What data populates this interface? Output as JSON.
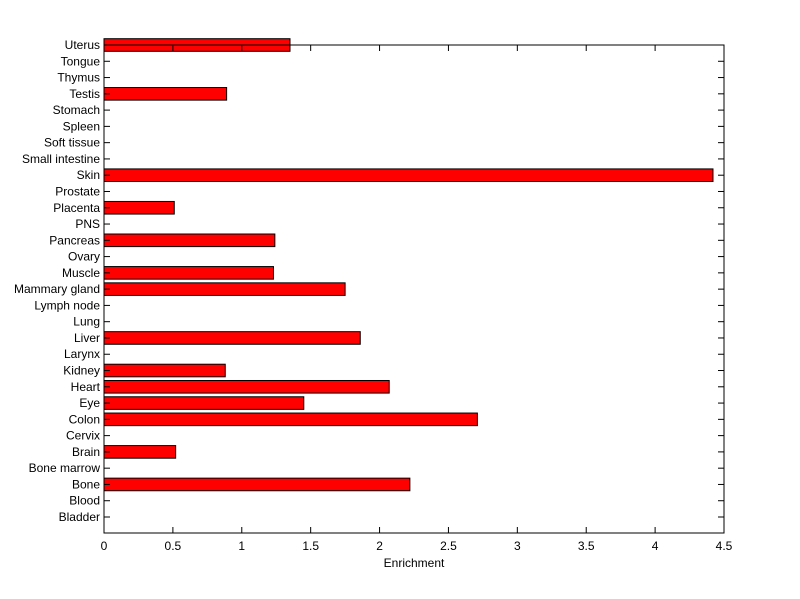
{
  "chart_data": {
    "type": "bar",
    "orientation": "horizontal",
    "categories": [
      "Bladder",
      "Blood",
      "Bone",
      "Bone marrow",
      "Brain",
      "Cervix",
      "Colon",
      "Eye",
      "Heart",
      "Kidney",
      "Larynx",
      "Liver",
      "Lung",
      "Lymph node",
      "Mammary gland",
      "Muscle",
      "Ovary",
      "Pancreas",
      "PNS",
      "Placenta",
      "Prostate",
      "Skin",
      "Small intestine",
      "Soft tissue",
      "Spleen",
      "Stomach",
      "Testis",
      "Thymus",
      "Tongue",
      "Uterus"
    ],
    "values": [
      0,
      0,
      2.22,
      0,
      0.52,
      0,
      2.71,
      1.45,
      2.07,
      0.88,
      0,
      1.86,
      0,
      0,
      1.75,
      1.23,
      0,
      1.24,
      0,
      0.51,
      0,
      4.42,
      0,
      0,
      0,
      0,
      0.89,
      0,
      0,
      1.35
    ],
    "xlabel": "Enrichment",
    "xlim": [
      0,
      4.5
    ],
    "xticks": [
      0,
      0.5,
      1,
      1.5,
      2,
      2.5,
      3,
      3.5,
      4,
      4.5
    ],
    "xtick_labels": [
      "0",
      "0.5",
      "1",
      "1.5",
      "2",
      "2.5",
      "3",
      "3.5",
      "4",
      "4.5"
    ],
    "grid": false,
    "bar_color": "#ff0000",
    "edge_color": "#000000"
  }
}
